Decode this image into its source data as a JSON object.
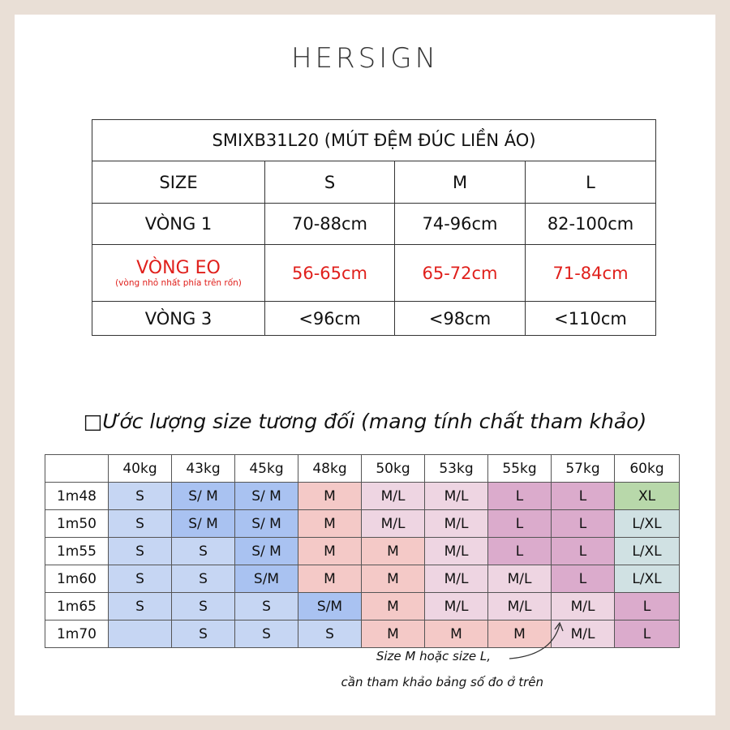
{
  "brand": "HERSIGN",
  "size_table": {
    "title": "SMIXB31L20 (MÚT ĐỆM ĐÚC LIỀN ÁO)",
    "header": [
      "SIZE",
      "S",
      "M",
      "L"
    ],
    "rows": [
      {
        "label": "VÒNG 1",
        "cells": [
          "70-88cm",
          "74-96cm",
          "82-100cm"
        ]
      },
      {
        "label": "VÒNG EO",
        "note": "(vòng nhỏ nhất phía trên rốn)",
        "cells": [
          "56-65cm",
          "65-72cm",
          "71-84cm"
        ]
      },
      {
        "label": "VÒNG 3",
        "cells": [
          "<96cm",
          "<98cm",
          "<110cm"
        ]
      }
    ]
  },
  "estimate": {
    "title": "□Ước lượng size tương đối (mang tính chất tham khảo)",
    "weights": [
      "40kg",
      "43kg",
      "45kg",
      "48kg",
      "50kg",
      "53kg",
      "55kg",
      "57kg",
      "60kg"
    ],
    "rows": [
      {
        "height": "1m48",
        "sizes": [
          "S",
          "S/ M",
          "S/ M",
          "M",
          "M/L",
          "M/L",
          "L",
          "L",
          "XL"
        ]
      },
      {
        "height": "1m50",
        "sizes": [
          "S",
          "S/ M",
          "S/ M",
          "M",
          "M/L",
          "M/L",
          "L",
          "L",
          "L/XL"
        ]
      },
      {
        "height": "1m55",
        "sizes": [
          "S",
          "S",
          "S/ M",
          "M",
          "M",
          "M/L",
          "L",
          "L",
          "L/XL"
        ]
      },
      {
        "height": "1m60",
        "sizes": [
          "S",
          "S",
          "S/M",
          "M",
          "M",
          "M/L",
          "M/L",
          "L",
          "L/XL"
        ]
      },
      {
        "height": "1m65",
        "sizes": [
          "S",
          "S",
          "S",
          "S/M",
          "M",
          "M/L",
          "M/L",
          "M/L",
          "L"
        ]
      },
      {
        "height": "1m70",
        "sizes": [
          null,
          "S",
          "S",
          "S",
          "M",
          "M",
          "M",
          "M/L",
          "L"
        ]
      }
    ]
  },
  "note": [
    "Size M hoặc size L,",
    "cần tham khảo bảng số đo ở trên"
  ]
}
